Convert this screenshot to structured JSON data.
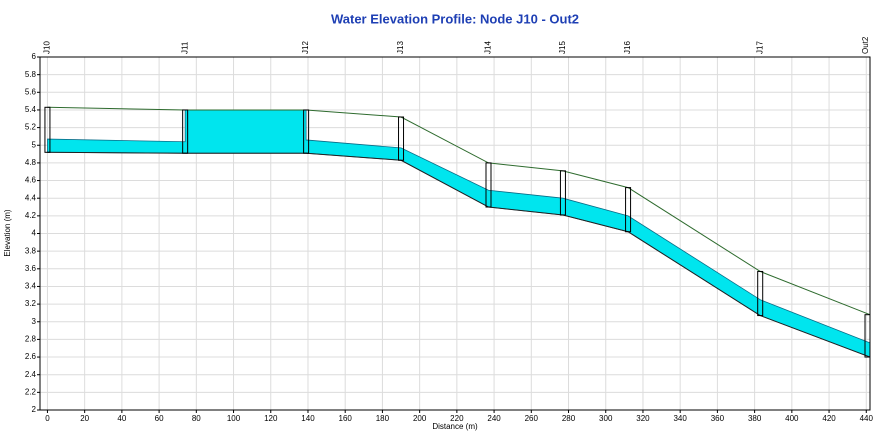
{
  "chart_data": {
    "type": "profile",
    "title": "Water Elevation Profile: Node J10 - Out2",
    "xlabel": "Distance (m)",
    "ylabel": "Elevation (m)",
    "xlim": [
      -4,
      442
    ],
    "ylim": [
      2,
      6
    ],
    "xticks": [
      0,
      20,
      40,
      60,
      80,
      100,
      120,
      140,
      160,
      180,
      200,
      220,
      240,
      260,
      280,
      300,
      320,
      340,
      360,
      380,
      400,
      420,
      440
    ],
    "yticks": [
      2,
      2.2,
      2.4,
      2.6,
      2.8,
      3,
      3.2,
      3.4,
      3.6,
      3.8,
      4,
      4.2,
      4.4,
      4.6,
      4.8,
      5,
      5.2,
      5.4,
      5.6,
      5.8,
      6
    ],
    "grid": true,
    "nodes": {
      "names": [
        "J10",
        "J11",
        "J12",
        "J13",
        "J14",
        "J15",
        "J16",
        "J17",
        "Out2"
      ],
      "x": [
        0,
        74,
        139,
        190,
        237,
        277,
        312,
        383,
        442
      ]
    },
    "ground": {
      "color": "#2e6b2e",
      "values": [
        5.43,
        5.4,
        5.4,
        5.32,
        4.8,
        4.71,
        4.52,
        3.57,
        3.08
      ]
    },
    "invert": {
      "color": "#222222",
      "values": [
        4.92,
        4.91,
        4.91,
        4.83,
        4.3,
        4.21,
        4.02,
        3.07,
        2.6
      ]
    },
    "water": {
      "color": "#00e5ee",
      "x": [
        0,
        74,
        74,
        139,
        139,
        190,
        237,
        277,
        312,
        383,
        442
      ],
      "values": [
        5.07,
        5.04,
        5.4,
        5.4,
        5.06,
        4.97,
        4.49,
        4.4,
        4.2,
        3.25,
        2.76
      ]
    }
  }
}
